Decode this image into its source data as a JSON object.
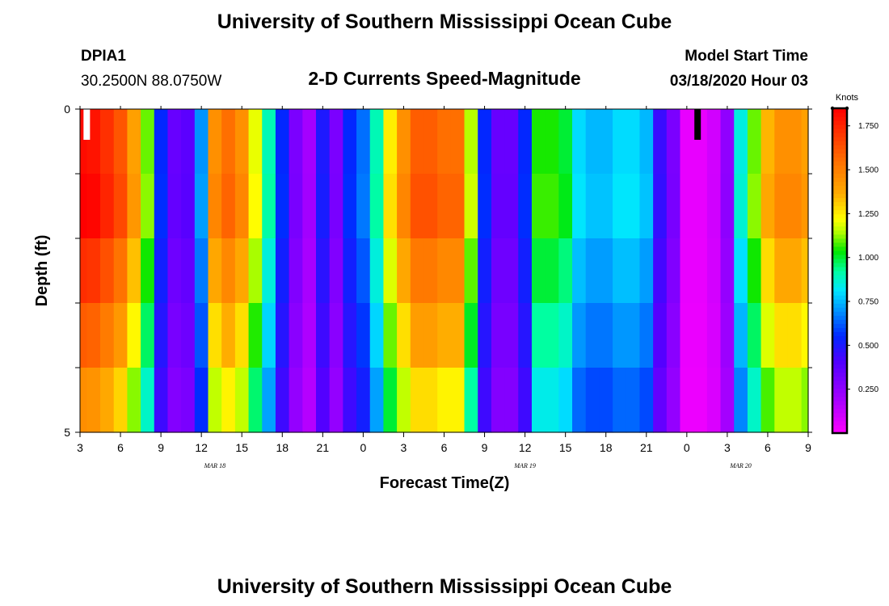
{
  "header": {
    "title": "University of Southern Mississippi Ocean Cube",
    "station": "DPIA1",
    "coords": "30.2500N 88.0750W",
    "subtitle": "2-D Currents Speed-Magnitude",
    "start_label": "Model Start Time",
    "start_time": "03/18/2020 Hour 03",
    "footer_title": "University of Southern Mississippi Ocean Cube"
  },
  "chart_data": {
    "type": "heatmap",
    "title": "2-D Currents Speed-Magnitude",
    "xlabel": "Forecast Time(Z)",
    "ylabel": "Depth (ft)",
    "x_hours": [
      3,
      4,
      5,
      6,
      7,
      8,
      9,
      10,
      11,
      12,
      13,
      14,
      15,
      16,
      17,
      18,
      19,
      20,
      21,
      22,
      23,
      24,
      25,
      26,
      27,
      28,
      29,
      30,
      31,
      32,
      33,
      34,
      35,
      36,
      37,
      38,
      39,
      40,
      41,
      42,
      43,
      44,
      45,
      46,
      47,
      48,
      49,
      50,
      51,
      52,
      53,
      54,
      55,
      56,
      57
    ],
    "xlim": [
      3,
      57
    ],
    "x_ticks": [
      3,
      6,
      9,
      12,
      15,
      18,
      21,
      24,
      27,
      30,
      33,
      36,
      39,
      42,
      45,
      48,
      51,
      54,
      57
    ],
    "x_tick_labels": [
      "3",
      "6",
      "9",
      "12",
      "15",
      "18",
      "21",
      "0",
      "3",
      "6",
      "9",
      "12",
      "15",
      "18",
      "21",
      "0",
      "3",
      "6",
      "9"
    ],
    "date_labels": [
      {
        "text": "MAR 18",
        "x": 13
      },
      {
        "text": "MAR 19",
        "x": 36
      },
      {
        "text": "MAR 20",
        "x": 52
      }
    ],
    "y_ticks": [
      0,
      1,
      2,
      3,
      4,
      5
    ],
    "y_tick_labels": [
      "0",
      "",
      "",
      "",
      "",
      "5"
    ],
    "ylim": [
      0,
      5
    ],
    "depth_rows": [
      0,
      1,
      2,
      3,
      4
    ],
    "surface_profile": [
      1.82,
      1.8,
      1.72,
      1.62,
      1.4,
      1.1,
      0.55,
      0.35,
      0.38,
      0.7,
      1.45,
      1.55,
      1.45,
      1.2,
      0.9,
      0.55,
      0.3,
      0.2,
      0.5,
      0.3,
      0.55,
      0.65,
      0.9,
      1.25,
      1.45,
      1.6,
      1.6,
      1.55,
      1.55,
      1.15,
      0.55,
      0.35,
      0.35,
      0.55,
      1.05,
      1.05,
      1.0,
      0.8,
      0.75,
      0.75,
      0.8,
      0.8,
      0.75,
      0.45,
      0.3,
      0.05,
      0.05,
      0.1,
      0.25,
      0.85,
      1.1,
      1.35,
      1.45,
      1.45,
      1.4
    ],
    "depth_factors": [
      1.0,
      1.02,
      0.95,
      0.88,
      0.8
    ],
    "missing_markers": [
      {
        "x": 3.5,
        "color": "#ffffff"
      },
      {
        "x": 48.8,
        "color": "#000000"
      }
    ],
    "colorbar": {
      "unit": "Knots",
      "min": 0.0,
      "max": 1.85,
      "ticks": [
        0.25,
        0.5,
        0.75,
        1.0,
        1.25,
        1.5,
        1.75
      ],
      "tick_labels": [
        "0.250",
        "0.500",
        "0.750",
        "1.000",
        "1.250",
        "1.500",
        "1.750"
      ]
    }
  }
}
